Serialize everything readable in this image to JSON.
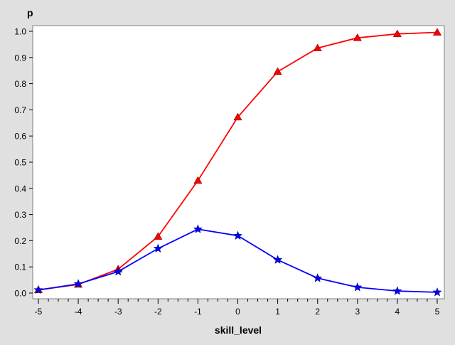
{
  "chart_data": {
    "type": "line",
    "xlabel": "skill_level",
    "ylabel": "p",
    "xlim": [
      -5,
      5
    ],
    "ylim": [
      0.0,
      1.0
    ],
    "x": [
      -5,
      -4,
      -3,
      -2,
      -1,
      0,
      1,
      2,
      3,
      4,
      5
    ],
    "x_tick_labels": [
      "-5",
      "-4",
      "-3",
      "-2",
      "-1",
      "0",
      "1",
      "2",
      "3",
      "4",
      "5"
    ],
    "y_ticks": [
      0.0,
      0.1,
      0.2,
      0.3,
      0.4,
      0.5,
      0.6,
      0.7,
      0.8,
      0.9,
      1.0
    ],
    "y_tick_labels": [
      "0.0",
      "0.1",
      "0.2",
      "0.3",
      "0.4",
      "0.5",
      "0.6",
      "0.7",
      "0.8",
      "0.9",
      "1.0"
    ],
    "grid": false,
    "legend": "none",
    "background": "#e0e0e0",
    "plot_background": "#ffffff",
    "series": [
      {
        "marker": "triangle",
        "color": "#ff0000",
        "values": [
          0.012,
          0.033,
          0.091,
          0.216,
          0.43,
          0.672,
          0.846,
          0.936,
          0.975,
          0.99,
          0.996
        ]
      },
      {
        "marker": "star",
        "color": "#0000ff",
        "values": [
          0.012,
          0.035,
          0.082,
          0.17,
          0.244,
          0.219,
          0.127,
          0.057,
          0.022,
          0.008,
          0.003
        ]
      }
    ]
  }
}
